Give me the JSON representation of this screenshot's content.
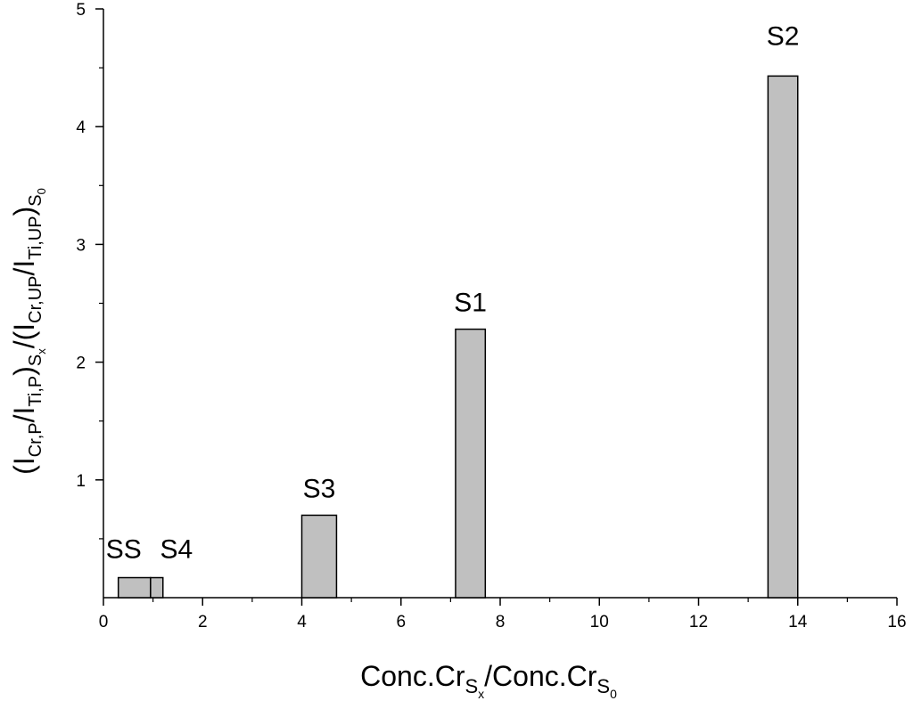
{
  "chart_data": {
    "type": "bar",
    "x_axis": {
      "min": 0,
      "max": 16,
      "major_ticks": [
        0,
        2,
        4,
        6,
        8,
        10,
        12,
        14,
        16
      ],
      "minor_ticks": [
        1,
        3,
        5,
        7,
        9,
        11,
        13,
        15
      ]
    },
    "y_axis": {
      "min": 0,
      "max": 5,
      "major_ticks": [
        1,
        2,
        3,
        4,
        5
      ],
      "minor_ticks": [
        0.5,
        1.5,
        2.5,
        3.5,
        4.5
      ]
    },
    "bars": [
      {
        "label": "SS",
        "x_start": 0.3,
        "x_end": 0.95,
        "value": 0.17
      },
      {
        "label": "S4",
        "x_start": 0.95,
        "x_end": 1.2,
        "value": 0.17
      },
      {
        "label": "S3",
        "x_start": 4.0,
        "x_end": 4.7,
        "value": 0.7
      },
      {
        "label": "S1",
        "x_start": 7.1,
        "x_end": 7.7,
        "value": 2.28
      },
      {
        "label": "S2",
        "x_start": 13.4,
        "x_end": 14.0,
        "value": 4.43
      }
    ],
    "bar_color": "#c0c0c0",
    "bar_edge_color": "#000000",
    "xlabel": {
      "part1": "Conc.Cr",
      "sub1": "S",
      "subsub1": "x",
      "part2": "/Conc.Cr",
      "sub2": "S",
      "subsub2": "0"
    },
    "ylabel": {
      "open": "(I",
      "sub_a": "Cr,P",
      "slash_a": "/I",
      "sub_b": "Ti,P",
      "close_a": ")",
      "sub_c": "S",
      "subsub_c": "x",
      "mid": "/(I",
      "sub_d": "Cr,UP",
      "slash_b": "/I",
      "sub_e": "Ti,UP",
      "close_b": ")",
      "sub_f": "S",
      "subsub_f": "0"
    },
    "grid": false,
    "legend": "none"
  }
}
